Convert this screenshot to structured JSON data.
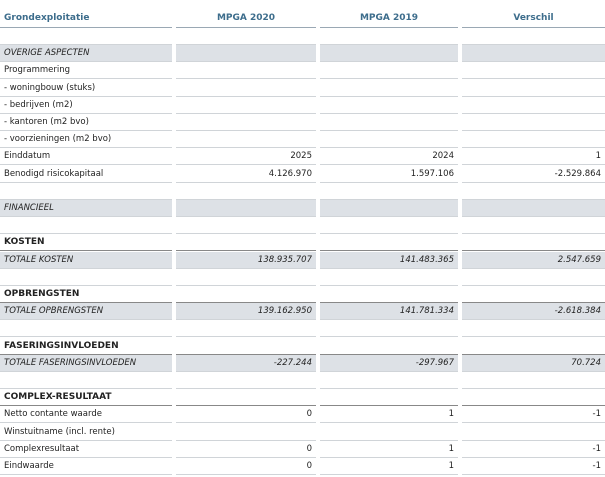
{
  "header": [
    "Grondexploitatie",
    "MPGA 2020",
    "MPGA 2019",
    "Verschil"
  ],
  "rows": [
    {
      "kind": "band",
      "label": "OVERIGE ASPECTEN"
    },
    {
      "kind": "line",
      "label": "Programmering"
    },
    {
      "kind": "line",
      "label": "- woningbouw (stuks)"
    },
    {
      "kind": "line",
      "label": "- bedrijven (m2)"
    },
    {
      "kind": "line",
      "label": "- kantoren (m2 bvo)"
    },
    {
      "kind": "line",
      "label": "- voorzieningen (m2 bvo)"
    },
    {
      "kind": "line",
      "label": "Einddatum",
      "values": [
        "2025",
        "2024",
        "1"
      ]
    },
    {
      "kind": "line",
      "label": "Benodigd risicokapitaal",
      "values": [
        "4.126.970",
        "1.597.106",
        "-2.529.864"
      ]
    },
    {
      "kind": "band",
      "label": "FINANCIEEL"
    },
    {
      "kind": "heading",
      "label": "KOSTEN"
    },
    {
      "kind": "total",
      "label": "TOTALE KOSTEN",
      "values": [
        "138.935.707",
        "141.483.365",
        "2.547.659"
      ]
    },
    {
      "kind": "heading",
      "label": "OPBRENGSTEN"
    },
    {
      "kind": "total",
      "label": "TOTALE OPBRENGSTEN",
      "values": [
        "139.162.950",
        "141.781.334",
        "-2.618.384"
      ]
    },
    {
      "kind": "heading",
      "label": "FASERINGSINVLOEDEN"
    },
    {
      "kind": "total",
      "label": "TOTALE FASERINGSINVLOEDEN",
      "values": [
        "-227.244",
        "-297.967",
        "70.724"
      ]
    },
    {
      "kind": "heading",
      "label": "COMPLEX-RESULTAAT"
    },
    {
      "kind": "line",
      "label": "Netto contante waarde",
      "values": [
        "0",
        "1",
        "-1"
      ]
    },
    {
      "kind": "line",
      "label": "Winstuitname (incl. rente)"
    },
    {
      "kind": "line",
      "label": "Complexresultaat",
      "values": [
        "0",
        "1",
        "-1"
      ]
    },
    {
      "kind": "line",
      "label": "Eindwaarde",
      "values": [
        "0",
        "1",
        "-1"
      ]
    }
  ]
}
